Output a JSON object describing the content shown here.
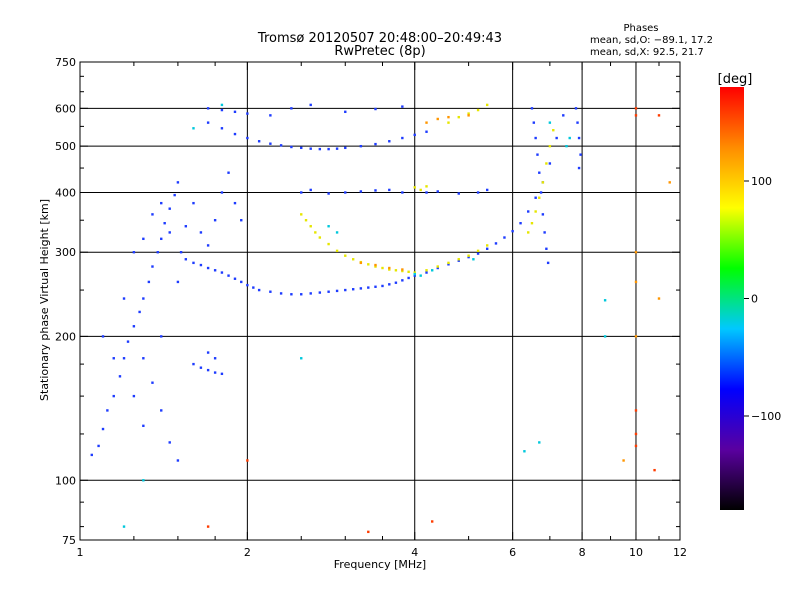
{
  "chart_data": {
    "type": "scatter",
    "title": "Tromsø 20120507 20:48:00–20:49:43",
    "subtitle": "RwPretec (8p)",
    "phases_legend": {
      "heading": "Phases",
      "line_o": "mean, sd,O: −89.1, 17.2",
      "line_x": "mean, sd,X:  92.5, 21.7"
    },
    "xlabel": "Frequency [MHz]",
    "ylabel": "Stationary phase Virtual Height [km]",
    "x_scale": "log",
    "y_scale": "log",
    "xlim": [
      1,
      12
    ],
    "ylim": [
      75,
      750
    ],
    "x_ticks": [
      1,
      2,
      4,
      6,
      8,
      10,
      12
    ],
    "x_tick_labels": [
      "1",
      "2",
      "4",
      "6",
      "8",
      "10",
      "12"
    ],
    "y_ticks": [
      75,
      100,
      200,
      300,
      400,
      500,
      600,
      750
    ],
    "y_tick_labels": [
      "75",
      "100",
      "200",
      "300",
      "400",
      "500",
      "600",
      "750"
    ],
    "x_minor_ticks": [
      1.25,
      1.5,
      1.75,
      2.5,
      3,
      3.5,
      5,
      7,
      9,
      11
    ],
    "y_minor_ticks": [
      80,
      90,
      125,
      150,
      175,
      250,
      350,
      450,
      550,
      650,
      700
    ],
    "grid_x": [
      2,
      4,
      6,
      8,
      10
    ],
    "grid_y": [
      100,
      200,
      300,
      400,
      500,
      600
    ],
    "grid": true,
    "colorbar": {
      "label": "[deg]",
      "min": -180,
      "max": 180,
      "ticks": [
        100,
        0,
        -100
      ],
      "tick_labels": [
        "100",
        "0",
        "−100"
      ],
      "colors": [
        "#000000",
        "#5a00a0",
        "#0000ff",
        "#00c8ff",
        "#00ff00",
        "#ffff00",
        "#ff8c00",
        "#ff0000"
      ]
    },
    "series": [
      {
        "trace": "F-region O-mode (blue)",
        "color": "#1e3cff",
        "points": [
          [
            1.05,
            113
          ],
          [
            1.08,
            118
          ],
          [
            1.1,
            128
          ],
          [
            1.12,
            140
          ],
          [
            1.15,
            150
          ],
          [
            1.18,
            165
          ],
          [
            1.2,
            180
          ],
          [
            1.22,
            195
          ],
          [
            1.25,
            210
          ],
          [
            1.28,
            225
          ],
          [
            1.3,
            240
          ],
          [
            1.33,
            260
          ],
          [
            1.35,
            280
          ],
          [
            1.38,
            300
          ],
          [
            1.4,
            320
          ],
          [
            1.42,
            345
          ],
          [
            1.45,
            370
          ],
          [
            1.48,
            395
          ],
          [
            1.5,
            420
          ],
          [
            1.52,
            300
          ],
          [
            1.55,
            290
          ],
          [
            1.6,
            285
          ],
          [
            1.65,
            282
          ],
          [
            1.7,
            278
          ],
          [
            1.75,
            275
          ],
          [
            1.8,
            272
          ],
          [
            1.85,
            268
          ],
          [
            1.9,
            264
          ],
          [
            1.95,
            260
          ],
          [
            2.0,
            256
          ],
          [
            2.05,
            253
          ],
          [
            2.1,
            250
          ],
          [
            2.2,
            248
          ],
          [
            2.3,
            246
          ],
          [
            2.4,
            245
          ],
          [
            2.5,
            245
          ],
          [
            2.6,
            246
          ],
          [
            2.7,
            247
          ],
          [
            2.8,
            248
          ],
          [
            2.9,
            249
          ],
          [
            3.0,
            250
          ],
          [
            3.1,
            251
          ],
          [
            3.2,
            252
          ],
          [
            3.3,
            253
          ],
          [
            3.4,
            254
          ],
          [
            3.5,
            255
          ],
          [
            3.6,
            257
          ],
          [
            3.7,
            259
          ],
          [
            3.8,
            262
          ],
          [
            3.9,
            265
          ],
          [
            4.0,
            268
          ],
          [
            4.2,
            272
          ],
          [
            4.4,
            278
          ],
          [
            4.6,
            283
          ],
          [
            4.8,
            288
          ],
          [
            5.0,
            293
          ],
          [
            5.2,
            298
          ],
          [
            5.4,
            305
          ],
          [
            5.6,
            313
          ],
          [
            5.8,
            322
          ],
          [
            6.0,
            332
          ],
          [
            6.2,
            345
          ],
          [
            6.4,
            365
          ],
          [
            6.6,
            390
          ],
          [
            6.8,
            420
          ],
          [
            7.0,
            460
          ],
          [
            7.2,
            520
          ],
          [
            7.4,
            580
          ],
          [
            1.7,
            560
          ],
          [
            1.8,
            545
          ],
          [
            1.9,
            530
          ],
          [
            2.0,
            520
          ],
          [
            2.1,
            512
          ],
          [
            2.2,
            506
          ],
          [
            2.3,
            502
          ],
          [
            2.4,
            498
          ],
          [
            2.5,
            496
          ],
          [
            2.6,
            494
          ],
          [
            2.7,
            493
          ],
          [
            2.8,
            493
          ],
          [
            2.9,
            494
          ],
          [
            3.0,
            496
          ],
          [
            3.2,
            500
          ],
          [
            3.4,
            505
          ],
          [
            3.6,
            512
          ],
          [
            3.8,
            520
          ],
          [
            4.0,
            528
          ],
          [
            4.2,
            536
          ],
          [
            1.7,
            600
          ],
          [
            1.8,
            595
          ],
          [
            1.9,
            590
          ],
          [
            2.0,
            585
          ],
          [
            2.2,
            580
          ],
          [
            2.4,
            600
          ],
          [
            2.6,
            610
          ],
          [
            3.0,
            590
          ],
          [
            3.4,
            598
          ],
          [
            3.8,
            605
          ],
          [
            2.5,
            400
          ],
          [
            2.6,
            405
          ],
          [
            2.8,
            398
          ],
          [
            3.0,
            400
          ],
          [
            3.2,
            402
          ],
          [
            3.4,
            404
          ],
          [
            3.6,
            405
          ],
          [
            3.8,
            400
          ],
          [
            4.2,
            400
          ],
          [
            4.4,
            402
          ],
          [
            4.8,
            398
          ],
          [
            5.2,
            400
          ],
          [
            5.4,
            405
          ],
          [
            1.6,
            175
          ],
          [
            1.65,
            172
          ],
          [
            1.7,
            170
          ],
          [
            1.75,
            168
          ],
          [
            1.8,
            167
          ],
          [
            1.7,
            185
          ],
          [
            1.75,
            180
          ],
          [
            6.5,
            600
          ],
          [
            6.55,
            560
          ],
          [
            6.6,
            520
          ],
          [
            6.65,
            480
          ],
          [
            6.7,
            440
          ],
          [
            6.75,
            400
          ],
          [
            6.8,
            360
          ],
          [
            6.85,
            330
          ],
          [
            6.9,
            305
          ],
          [
            6.95,
            285
          ],
          [
            7.8,
            600
          ],
          [
            7.85,
            560
          ],
          [
            7.9,
            520
          ],
          [
            7.95,
            480
          ],
          [
            7.9,
            450
          ],
          [
            1.1,
            200
          ],
          [
            1.2,
            240
          ],
          [
            1.3,
            320
          ],
          [
            1.35,
            360
          ],
          [
            1.4,
            380
          ],
          [
            1.45,
            330
          ],
          [
            1.25,
            300
          ],
          [
            1.3,
            180
          ],
          [
            1.35,
            160
          ],
          [
            1.4,
            200
          ],
          [
            1.5,
            260
          ],
          [
            1.55,
            340
          ],
          [
            1.6,
            380
          ],
          [
            1.65,
            330
          ],
          [
            1.7,
            310
          ],
          [
            1.75,
            350
          ],
          [
            1.8,
            400
          ],
          [
            1.85,
            440
          ],
          [
            1.9,
            380
          ],
          [
            1.95,
            350
          ],
          [
            1.15,
            180
          ],
          [
            1.25,
            150
          ],
          [
            1.4,
            140
          ],
          [
            1.45,
            120
          ],
          [
            1.5,
            110
          ],
          [
            1.3,
            130
          ]
        ]
      },
      {
        "trace": "F-region X-mode (yellow)",
        "color": "#e6e600",
        "points": [
          [
            2.5,
            360
          ],
          [
            2.55,
            350
          ],
          [
            2.6,
            340
          ],
          [
            2.65,
            330
          ],
          [
            2.7,
            322
          ],
          [
            2.8,
            312
          ],
          [
            2.9,
            302
          ],
          [
            3.0,
            295
          ],
          [
            3.1,
            290
          ],
          [
            3.2,
            286
          ],
          [
            3.3,
            283
          ],
          [
            3.4,
            280
          ],
          [
            3.5,
            278
          ],
          [
            3.6,
            276
          ],
          [
            3.7,
            275
          ],
          [
            3.8,
            274
          ],
          [
            3.9,
            273
          ],
          [
            4.0,
            272
          ],
          [
            4.2,
            275
          ],
          [
            4.4,
            280
          ],
          [
            4.6,
            285
          ],
          [
            4.8,
            290
          ],
          [
            5.0,
            295
          ],
          [
            5.2,
            302
          ],
          [
            5.4,
            310
          ],
          [
            6.4,
            330
          ],
          [
            6.5,
            345
          ],
          [
            6.6,
            365
          ],
          [
            6.7,
            390
          ],
          [
            6.8,
            420
          ],
          [
            6.9,
            460
          ],
          [
            7.0,
            500
          ],
          [
            7.1,
            540
          ],
          [
            4.0,
            410
          ],
          [
            4.1,
            405
          ],
          [
            4.2,
            412
          ],
          [
            4.6,
            560
          ],
          [
            4.8,
            575
          ],
          [
            5.0,
            585
          ],
          [
            5.2,
            595
          ],
          [
            5.4,
            610
          ]
        ]
      },
      {
        "trace": "X-mode (orange)",
        "color": "#ff9600",
        "points": [
          [
            3.2,
            285
          ],
          [
            3.4,
            282
          ],
          [
            3.6,
            278
          ],
          [
            3.8,
            276
          ],
          [
            4.2,
            560
          ],
          [
            4.4,
            570
          ],
          [
            4.6,
            575
          ],
          [
            5.0,
            580
          ],
          [
            10.0,
            300
          ],
          [
            10.0,
            260
          ],
          [
            10.0,
            200
          ],
          [
            9.5,
            110
          ],
          [
            11.0,
            240
          ],
          [
            11.5,
            420
          ]
        ]
      },
      {
        "trace": "scattered returns (mixed)",
        "color": "#ff3c00",
        "points": [
          [
            10.0,
            600
          ],
          [
            10.0,
            580
          ],
          [
            10.0,
            140
          ],
          [
            10.0,
            125
          ],
          [
            10.0,
            118
          ],
          [
            10.8,
            105
          ],
          [
            11.0,
            580
          ],
          [
            2.0,
            110
          ],
          [
            1.7,
            80
          ],
          [
            3.3,
            78
          ],
          [
            4.3,
            82
          ]
        ]
      },
      {
        "trace": "cyan/green samples",
        "color": "#00c8dc",
        "points": [
          [
            2.8,
            340
          ],
          [
            2.9,
            330
          ],
          [
            4.0,
            270
          ],
          [
            4.1,
            268
          ],
          [
            4.3,
            275
          ],
          [
            5.1,
            290
          ],
          [
            7.5,
            500
          ],
          [
            7.6,
            520
          ],
          [
            6.7,
            120
          ],
          [
            6.3,
            115
          ],
          [
            7.0,
            560
          ],
          [
            8.8,
            238
          ],
          [
            8.8,
            200
          ],
          [
            1.6,
            545
          ],
          [
            1.8,
            610
          ],
          [
            2.5,
            180
          ],
          [
            1.2,
            80
          ],
          [
            1.3,
            100
          ]
        ]
      }
    ]
  }
}
